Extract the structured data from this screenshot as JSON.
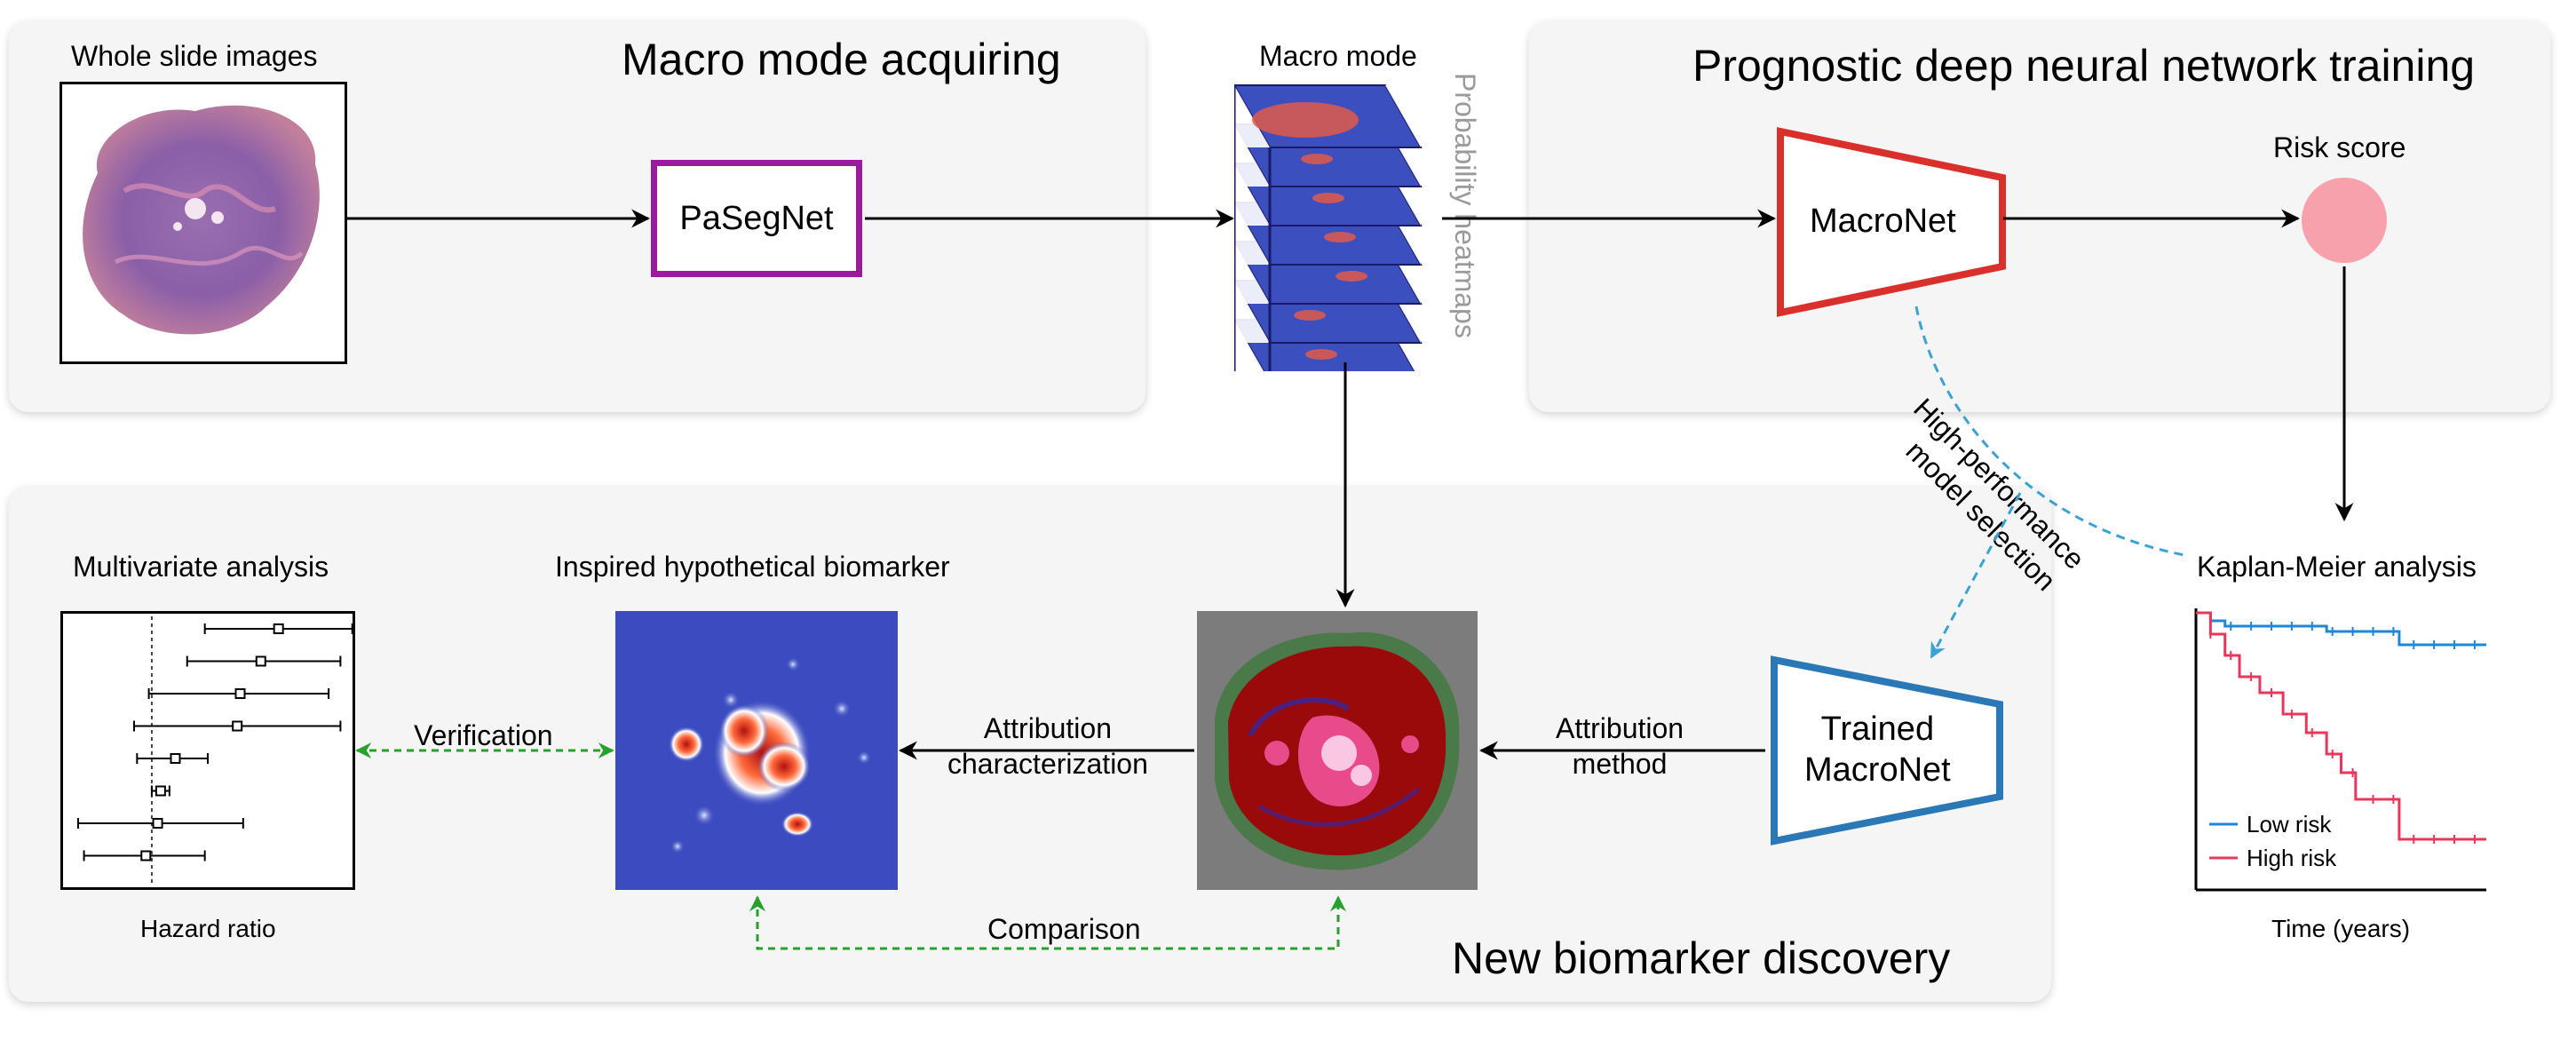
{
  "sections": {
    "macro": {
      "title": "Macro mode acquiring"
    },
    "training": {
      "title": "Prognostic deep neural network training"
    },
    "discovery": {
      "title": "New biomarker discovery"
    }
  },
  "nodes": {
    "wsi": "Whole slide images",
    "pasegnet": "PaSegNet",
    "macro_mode": "Macro mode",
    "heatmaps_label": "Probability heatmaps",
    "macronet": "MacroNet",
    "risk_score": "Risk score",
    "trained_macronet_line1": "Trained",
    "trained_macronet_line2": "MacroNet",
    "inspired": "Inspired hypothetical biomarker",
    "multivariate": "Multivariate analysis",
    "hazard_ratio": "Hazard ratio",
    "km": "Kaplan-Meier analysis",
    "km_xlabel": "Time (years)"
  },
  "edges": {
    "high_perf_line1": "High-performance",
    "high_perf_line2": "model selection",
    "attr_method_line1": "Attribution",
    "attr_method_line2": "method",
    "attr_char_line1": "Attribution",
    "attr_char_line2": "characterization",
    "verification": "Verification",
    "comparison": "Comparison"
  },
  "km_legend": {
    "low": "Low risk",
    "high": "High risk"
  },
  "colors": {
    "pasegnet": "#9b1b9b",
    "macronet": "#d9302c",
    "trained": "#2a79b6",
    "risk": "#f7a1ad",
    "low_risk": "#1e88d8",
    "high_risk": "#e8375a",
    "green_arrow": "#27a02c",
    "blue_dash": "#3ba3d4",
    "heatmap_bg": "#3c4cc0"
  },
  "chart_data": [
    {
      "type": "line",
      "title": "Kaplan-Meier analysis",
      "xlabel": "Time (years)",
      "ylabel": "",
      "series": [
        {
          "name": "Low risk",
          "x": [
            0,
            0.05,
            0.1,
            0.4,
            0.45,
            0.68,
            0.7,
            1.0
          ],
          "y": [
            1.0,
            0.97,
            0.95,
            0.95,
            0.93,
            0.93,
            0.88,
            0.88
          ]
        },
        {
          "name": "High risk",
          "x": [
            0,
            0.05,
            0.1,
            0.15,
            0.22,
            0.3,
            0.38,
            0.45,
            0.5,
            0.55,
            0.65,
            0.7,
            0.8,
            1.0
          ],
          "y": [
            1.0,
            0.92,
            0.84,
            0.76,
            0.7,
            0.62,
            0.55,
            0.47,
            0.4,
            0.3,
            0.3,
            0.15,
            0.15,
            0.15
          ]
        }
      ]
    },
    {
      "type": "scatter",
      "title": "Multivariate analysis",
      "xlabel": "Hazard ratio",
      "ylabel": "",
      "estimates": [
        0.74,
        0.68,
        0.61,
        0.6,
        0.39,
        0.34,
        0.33,
        0.29
      ],
      "ci_low": [
        0.49,
        0.43,
        0.3,
        0.25,
        0.26,
        0.31,
        0.06,
        0.08
      ],
      "ci_high": [
        0.99,
        0.95,
        0.91,
        0.95,
        0.5,
        0.37,
        0.62,
        0.49
      ],
      "reference": 0.31
    }
  ]
}
